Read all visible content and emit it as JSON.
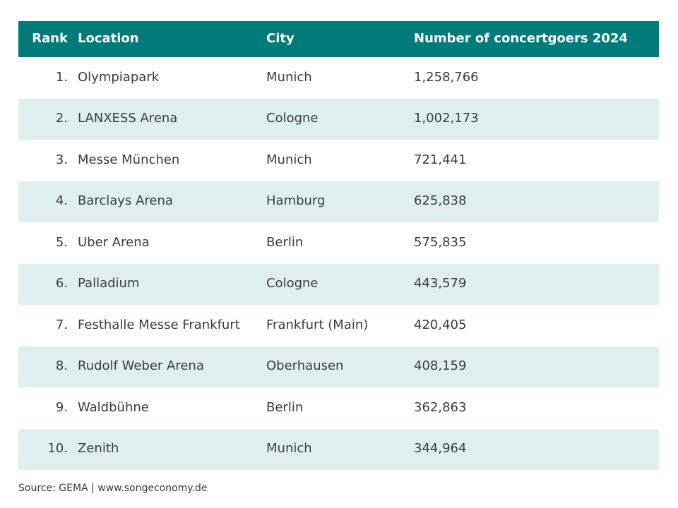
{
  "table": {
    "headers": {
      "rank": "Rank",
      "location": "Location",
      "city": "City",
      "number": "Number of concertgoers 2024"
    },
    "rows": [
      {
        "rank": "1.",
        "location": "Olympiapark",
        "city": "Munich",
        "number": "1,258,766"
      },
      {
        "rank": "2.",
        "location": "LANXESS Arena",
        "city": "Cologne",
        "number": "1,002,173"
      },
      {
        "rank": "3.",
        "location": "Messe München",
        "city": "Munich",
        "number": "721,441"
      },
      {
        "rank": "4.",
        "location": "Barclays Arena",
        "city": "Hamburg",
        "number": "625,838"
      },
      {
        "rank": "5.",
        "location": "Uber Arena",
        "city": "Berlin",
        "number": "575,835"
      },
      {
        "rank": "6.",
        "location": "Palladium",
        "city": "Cologne",
        "number": "443,579"
      },
      {
        "rank": "7.",
        "location": "Festhalle Messe Frankfurt",
        "city": "Frankfurt (Main)",
        "number": "420,405"
      },
      {
        "rank": "8.",
        "location": "Rudolf Weber Arena",
        "city": "Oberhausen",
        "number": "408,159"
      },
      {
        "rank": "9.",
        "location": "Waldbühne",
        "city": "Berlin",
        "number": "362,863"
      },
      {
        "rank": "10.",
        "location": "Zenith",
        "city": "Munich",
        "number": "344,964"
      }
    ]
  },
  "source": "Source: GEMA | www.songeconomy.de",
  "colors": {
    "header_bg": "#007b7a",
    "stripe_bg": "#dfefef",
    "text": "#3c3c3c"
  }
}
